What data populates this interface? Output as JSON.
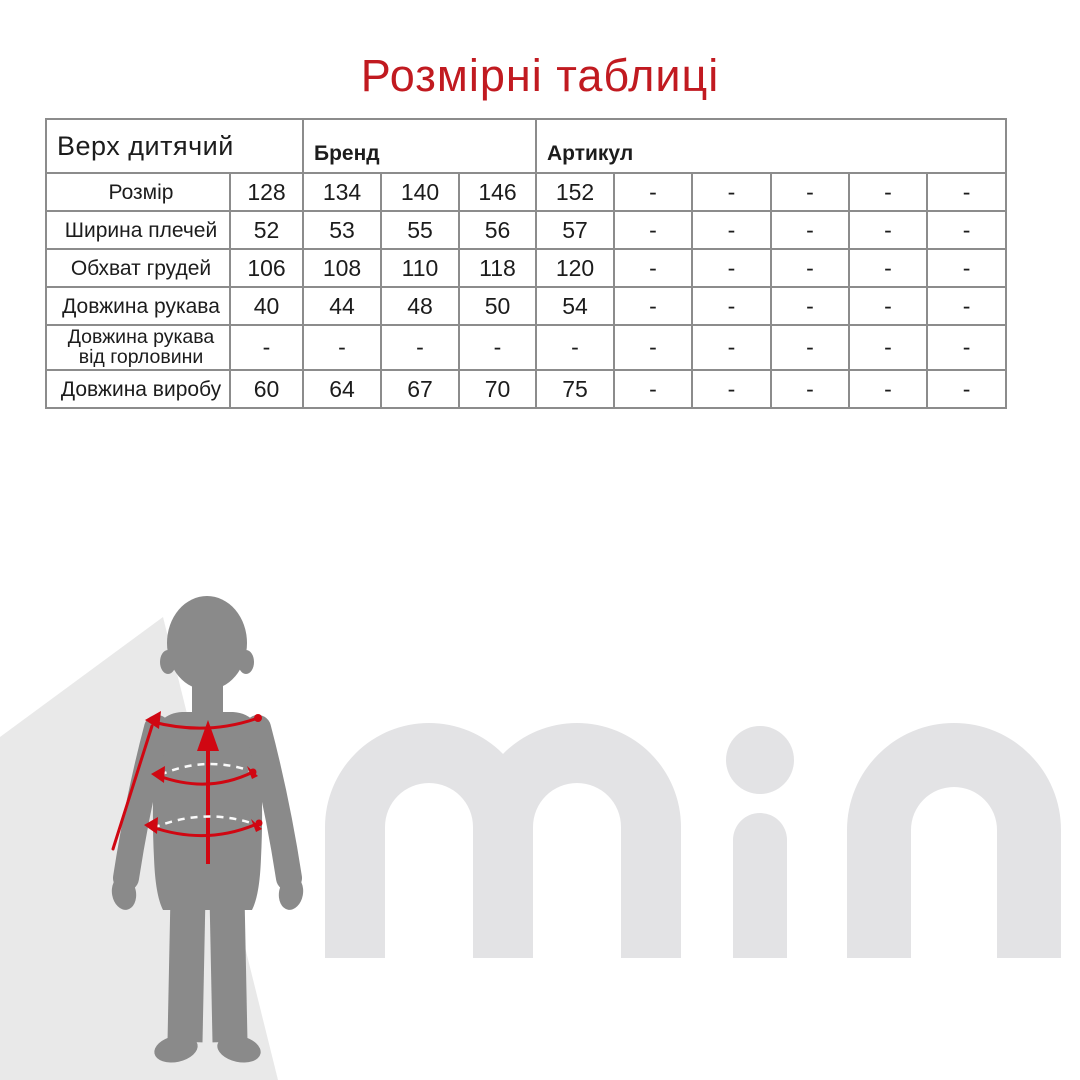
{
  "page": {
    "title": "Розмірні таблиці"
  },
  "table": {
    "group_headers": [
      {
        "label": "Верх дитячий",
        "colspan": 2
      },
      {
        "label": "Бренд",
        "colspan": 3
      },
      {
        "label": "Артикул",
        "colspan": 6
      }
    ],
    "rows": [
      {
        "label": "Розмір",
        "values": [
          "128",
          "134",
          "140",
          "146",
          "152",
          "-",
          "-",
          "-",
          "-",
          "-"
        ]
      },
      {
        "label": "Ширина плечей",
        "values": [
          "52",
          "53",
          "55",
          "56",
          "57",
          "-",
          "-",
          "-",
          "-",
          "-"
        ]
      },
      {
        "label": "Обхват грудей",
        "values": [
          "106",
          "108",
          "110",
          "118",
          "120",
          "-",
          "-",
          "-",
          "-",
          "-"
        ]
      },
      {
        "label": "Довжина рукава",
        "values": [
          "40",
          "44",
          "48",
          "50",
          "54",
          "-",
          "-",
          "-",
          "-",
          "-"
        ]
      },
      {
        "label": "Довжина рукава від горловини",
        "values": [
          "-",
          "-",
          "-",
          "-",
          "-",
          "-",
          "-",
          "-",
          "-",
          "-"
        ]
      },
      {
        "label": "Довжина виробу",
        "values": [
          "60",
          "64",
          "67",
          "70",
          "75",
          "-",
          "-",
          "-",
          "-",
          "-"
        ]
      }
    ]
  },
  "watermark": {
    "text": "min"
  },
  "figure": {
    "icon": "child-measurement-silhouette-icon"
  },
  "colors": {
    "accent_red": "#c11a20",
    "arrow_red": "#d00712",
    "silhouette_gray": "#8a8a8a",
    "wedge_gray": "#e9e9e9",
    "watermark_gray": "#e3e3e5",
    "table_border_gray": "#8c8c8c",
    "muted_header_gray": "#9e9e9e"
  }
}
